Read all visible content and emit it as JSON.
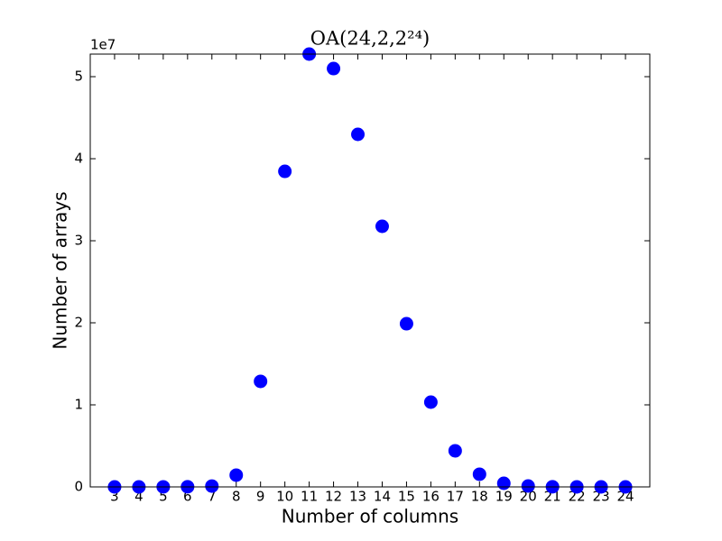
{
  "chart_data": {
    "type": "scatter",
    "title": "OA(24,2,2²⁴)",
    "x_label": "Number of columns",
    "y_label": "Number of arrays",
    "y_offset_label": "1e7",
    "color": "#0000ff",
    "x": [
      3,
      4,
      5,
      6,
      7,
      8,
      9,
      10,
      11,
      12,
      13,
      14,
      15,
      16,
      17,
      18,
      19,
      20,
      21,
      22,
      23,
      24
    ],
    "values": [
      100,
      1000,
      5000,
      20000,
      100000,
      1430000,
      12860000,
      38460000,
      52750000,
      50990000,
      42970000,
      31760000,
      19890000,
      10330000,
      4400000,
      1540000,
      440000,
      110000,
      20000,
      5000,
      1000,
      100
    ],
    "xlim": [
      2,
      25
    ],
    "xticks": [
      3,
      4,
      5,
      6,
      7,
      8,
      9,
      10,
      11,
      12,
      13,
      14,
      15,
      16,
      17,
      18,
      19,
      20,
      21,
      22,
      23,
      24
    ],
    "ylim": [
      0,
      52750000
    ],
    "yticks": [
      0,
      {
        "value": 10000000,
        "label": "1"
      },
      {
        "value": 20000000,
        "label": "2"
      },
      {
        "value": 30000000,
        "label": "3"
      },
      {
        "value": 40000000,
        "label": "4"
      },
      {
        "value": 50000000,
        "label": "5"
      }
    ]
  }
}
